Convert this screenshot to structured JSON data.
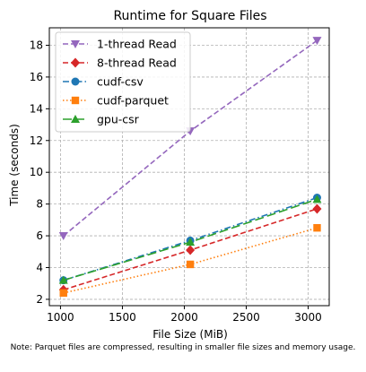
{
  "chart_data": {
    "type": "line",
    "title": "Runtime for Square Files",
    "xlabel": "File Size (MiB)",
    "ylabel": "Time (seconds)",
    "xlim": [
      910,
      3170
    ],
    "ylim": [
      1.6,
      19.1
    ],
    "xticks": [
      1000,
      1500,
      2000,
      2500,
      3000
    ],
    "yticks": [
      2,
      4,
      6,
      8,
      10,
      12,
      14,
      16,
      18
    ],
    "grid": true,
    "legend_position": "upper-left",
    "x": [
      1024,
      2048,
      3072
    ],
    "series": [
      {
        "name": "1-thread Read",
        "values": [
          6.0,
          12.6,
          18.3
        ],
        "color": "#9467bd",
        "marker": "triangle-down",
        "dash": "dashed"
      },
      {
        "name": "8-thread Read",
        "values": [
          2.6,
          5.1,
          7.7
        ],
        "color": "#d62728",
        "marker": "diamond",
        "dash": "dashed"
      },
      {
        "name": "cudf-csv",
        "values": [
          3.2,
          5.7,
          8.4
        ],
        "color": "#1f77b4",
        "marker": "circle",
        "dash": "dash-dot"
      },
      {
        "name": "cudf-parquet",
        "values": [
          2.4,
          4.2,
          6.5
        ],
        "color": "#ff7f0e",
        "marker": "square",
        "dash": "dotted"
      },
      {
        "name": "gpu-csr",
        "values": [
          3.2,
          5.6,
          8.3
        ],
        "color": "#2ca02c",
        "marker": "triangle-up",
        "dash": "long-dash"
      }
    ]
  },
  "note": "Note: Parquet files are compressed, resulting in smaller file sizes and memory usage."
}
